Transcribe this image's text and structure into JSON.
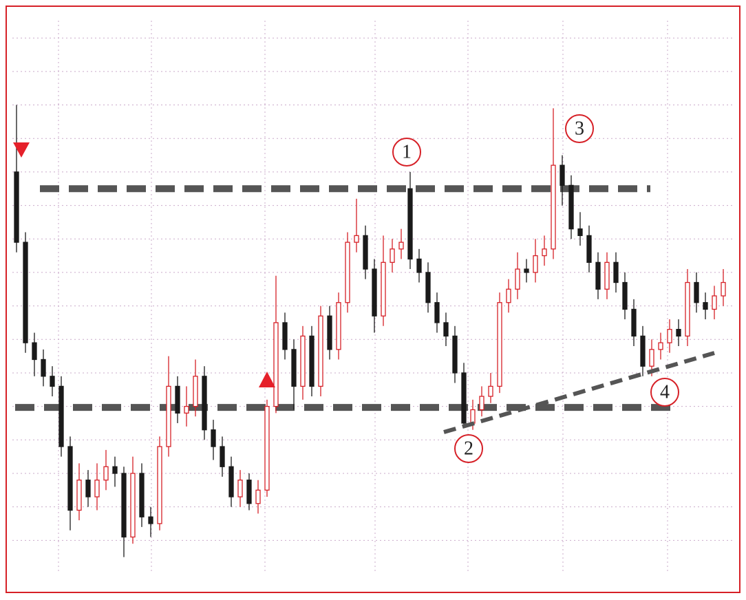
{
  "chart_data": {
    "type": "candlestick",
    "open": [
      12.0,
      9.9,
      6.9,
      6.4,
      5.9,
      5.6,
      3.8,
      1.9,
      2.8,
      2.3,
      2.8,
      3.2,
      3.0,
      1.1,
      3.0,
      1.7,
      1.5,
      3.8,
      5.6,
      4.8,
      5.0,
      5.9,
      4.3,
      3.8,
      3.2,
      2.3,
      2.8,
      2.1,
      2.5,
      5.0,
      7.5,
      6.7,
      5.6,
      7.1,
      5.6,
      7.7,
      6.7,
      8.1,
      9.9,
      10.1,
      9.1,
      7.7,
      9.3,
      9.7,
      11.5,
      9.4,
      9.0,
      8.1,
      7.5,
      7.1,
      6.0,
      4.5,
      4.9,
      5.3,
      5.6,
      8.1,
      8.5,
      9.1,
      9.0,
      9.5,
      9.7,
      12.2,
      11.6,
      10.3,
      10.1,
      9.3,
      8.5,
      9.3,
      8.7,
      7.9,
      7.1,
      6.2,
      6.7,
      6.9,
      7.3,
      7.1,
      8.7,
      8.1,
      7.9,
      8.3
    ],
    "high": [
      14.0,
      10.2,
      7.2,
      6.7,
      6.2,
      5.9,
      4.1,
      3.3,
      3.1,
      3.3,
      3.7,
      3.5,
      3.2,
      3.5,
      3.3,
      2.0,
      4.1,
      6.5,
      5.9,
      5.6,
      6.4,
      6.2,
      4.6,
      4.1,
      3.5,
      3.1,
      3.0,
      2.8,
      5.2,
      8.9,
      7.8,
      7.0,
      7.4,
      7.4,
      8.0,
      8.0,
      8.4,
      10.2,
      11.2,
      10.4,
      9.4,
      10.1,
      10.0,
      10.3,
      12.0,
      9.7,
      9.3,
      8.4,
      7.8,
      7.4,
      6.3,
      5.2,
      5.6,
      6.0,
      8.4,
      8.8,
      9.6,
      9.4,
      10.0,
      10.1,
      13.9,
      12.5,
      11.9,
      10.8,
      10.4,
      9.6,
      9.6,
      9.6,
      9.0,
      8.2,
      7.4,
      7.0,
      7.2,
      7.6,
      7.6,
      9.1,
      9.0,
      8.4,
      8.6,
      9.1
    ],
    "low": [
      9.6,
      6.6,
      5.9,
      5.6,
      5.3,
      3.5,
      1.3,
      1.6,
      2.0,
      1.9,
      2.5,
      2.6,
      0.5,
      0.9,
      1.4,
      1.1,
      1.3,
      3.5,
      4.5,
      4.4,
      4.7,
      4.0,
      3.4,
      2.9,
      2.0,
      2.0,
      1.9,
      1.8,
      2.3,
      4.8,
      6.4,
      4.9,
      5.2,
      5.3,
      5.3,
      6.4,
      6.4,
      7.8,
      9.6,
      8.8,
      7.2,
      7.4,
      9.0,
      9.4,
      9.1,
      8.7,
      7.8,
      7.2,
      6.8,
      5.7,
      4.4,
      4.3,
      4.7,
      5.1,
      5.4,
      7.8,
      8.2,
      8.7,
      8.7,
      9.2,
      9.4,
      11.0,
      10.0,
      9.8,
      9.0,
      8.2,
      8.2,
      8.4,
      7.6,
      6.8,
      5.9,
      5.9,
      6.4,
      6.6,
      6.8,
      6.8,
      7.8,
      7.6,
      7.6,
      8.0
    ],
    "close": [
      9.9,
      6.9,
      6.4,
      5.9,
      5.6,
      3.8,
      1.9,
      2.8,
      2.3,
      2.8,
      3.2,
      3.0,
      1.1,
      3.0,
      1.7,
      1.5,
      3.8,
      5.6,
      4.8,
      5.0,
      5.9,
      4.3,
      3.8,
      3.2,
      2.3,
      2.8,
      2.1,
      2.5,
      5.0,
      7.5,
      6.7,
      5.6,
      7.1,
      5.6,
      7.7,
      6.7,
      8.1,
      9.9,
      10.1,
      9.1,
      7.7,
      9.3,
      9.7,
      9.9,
      9.4,
      9.0,
      8.1,
      7.5,
      7.1,
      6.0,
      4.5,
      4.9,
      5.3,
      5.6,
      8.1,
      8.5,
      9.1,
      9.0,
      9.5,
      9.7,
      12.2,
      11.6,
      10.3,
      10.1,
      9.3,
      8.5,
      9.3,
      8.7,
      7.9,
      7.1,
      6.2,
      6.7,
      6.9,
      7.3,
      7.1,
      8.7,
      8.1,
      7.9,
      8.3,
      8.7
    ],
    "up_color": "#d62027",
    "down_color": "#1a1a1a",
    "levels": [
      11.5,
      4.97
    ],
    "annotations": [
      "1",
      "2",
      "3",
      "4"
    ],
    "ylim": [
      0,
      16.6
    ],
    "yticks": [
      1,
      2,
      3,
      4,
      5,
      6,
      7,
      8,
      9,
      10,
      11,
      12,
      13,
      14,
      15,
      16
    ],
    "grid": true
  }
}
